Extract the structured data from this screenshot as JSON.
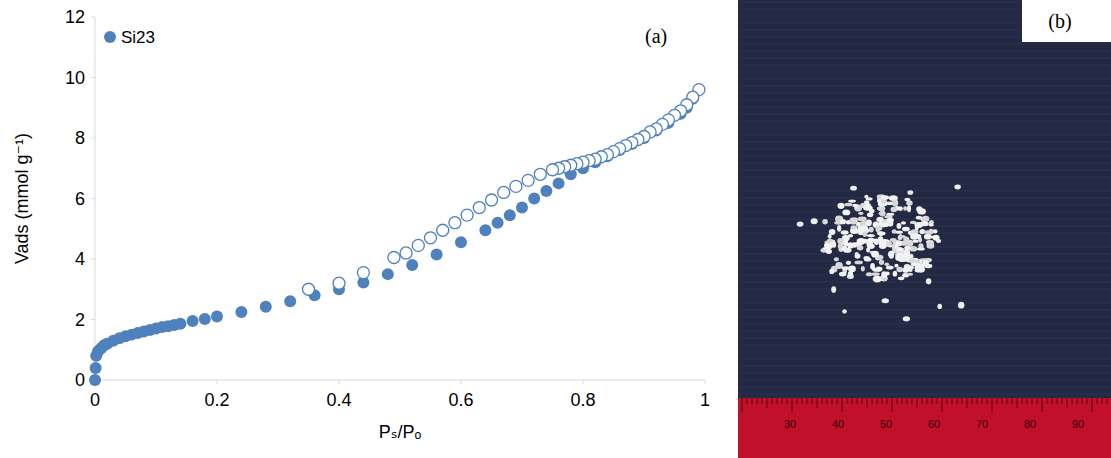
{
  "chart_data": {
    "type": "scatter",
    "x_label": "Pₛ/Pₒ",
    "y_label": "Vads (mmol g⁻¹)",
    "annotations": [
      "(a)"
    ],
    "xlim": [
      0,
      1
    ],
    "xticks": [
      0,
      0.2,
      0.4,
      0.6,
      0.8,
      1
    ],
    "ylim": [
      0,
      12
    ],
    "yticks": [
      0,
      2,
      4,
      6,
      8,
      10,
      12
    ],
    "grid": false,
    "legend": "top-left",
    "series": [
      {
        "name": "Si23",
        "color": "#4f81bd",
        "marker": "circle",
        "x": [
          0,
          0.001,
          0.002,
          0.005,
          0.01,
          0.015,
          0.02,
          0.03,
          0.04,
          0.05,
          0.06,
          0.07,
          0.08,
          0.09,
          0.1,
          0.11,
          0.12,
          0.13,
          0.14,
          0.16,
          0.18,
          0.2,
          0.24,
          0.28,
          0.32,
          0.36,
          0.4,
          0.44,
          0.48,
          0.52,
          0.56,
          0.6,
          0.64,
          0.66,
          0.68,
          0.7,
          0.72,
          0.74,
          0.76,
          0.78,
          0.8,
          0.82,
          0.84,
          0.86,
          0.88,
          0.9,
          0.92,
          0.94,
          0.96,
          0.97,
          0.98,
          0.99
        ],
        "values": [
          0,
          0.4,
          0.8,
          0.95,
          1.05,
          1.15,
          1.2,
          1.3,
          1.38,
          1.45,
          1.5,
          1.55,
          1.6,
          1.65,
          1.7,
          1.75,
          1.78,
          1.82,
          1.86,
          1.95,
          2.02,
          2.1,
          2.25,
          2.42,
          2.6,
          2.8,
          3.0,
          3.22,
          3.5,
          3.8,
          4.15,
          4.55,
          4.95,
          5.2,
          5.45,
          5.7,
          6.0,
          6.25,
          6.5,
          6.8,
          7.0,
          7.2,
          7.4,
          7.6,
          7.8,
          8.0,
          8.25,
          8.5,
          8.8,
          9.0,
          9.3,
          9.6
        ]
      },
      {
        "color": "#4f81bd",
        "marker": "open-circle",
        "x": [
          0.99,
          0.98,
          0.97,
          0.96,
          0.95,
          0.94,
          0.93,
          0.92,
          0.91,
          0.9,
          0.89,
          0.88,
          0.87,
          0.86,
          0.85,
          0.84,
          0.83,
          0.82,
          0.81,
          0.8,
          0.79,
          0.78,
          0.77,
          0.76,
          0.75,
          0.73,
          0.71,
          0.69,
          0.67,
          0.65,
          0.63,
          0.61,
          0.59,
          0.57,
          0.55,
          0.53,
          0.51,
          0.49,
          0.44,
          0.4,
          0.35
        ],
        "values": [
          9.6,
          9.35,
          9.1,
          8.9,
          8.75,
          8.6,
          8.45,
          8.3,
          8.2,
          8.05,
          7.95,
          7.85,
          7.75,
          7.65,
          7.55,
          7.45,
          7.38,
          7.3,
          7.25,
          7.2,
          7.15,
          7.1,
          7.05,
          7.0,
          6.95,
          6.8,
          6.6,
          6.4,
          6.2,
          5.95,
          5.7,
          5.45,
          5.2,
          4.95,
          4.7,
          4.45,
          4.2,
          4.05,
          3.55,
          3.2,
          3.0
        ]
      }
    ]
  },
  "photo": {
    "label": "(b)",
    "ruler_labels": [
      30,
      40,
      50,
      60,
      70,
      80,
      90
    ]
  }
}
